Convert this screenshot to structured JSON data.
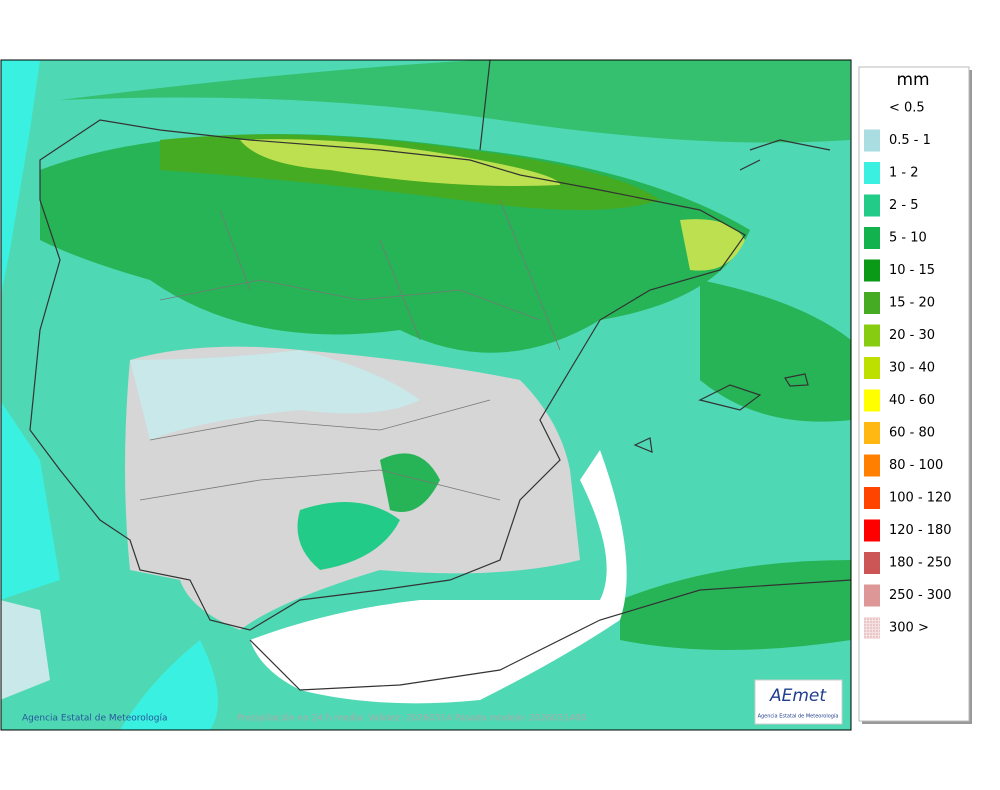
{
  "map": {
    "credit": "Agencia Estatal de Meteorología",
    "caption": "Precipitación en 24 h media. Validez: 20260314 Pasada modelo: 2026031400",
    "logo": {
      "text": "AEmet",
      "subtitle": "Agencia Estatal de Meteorología"
    }
  },
  "legend": {
    "unit": "mm",
    "items": [
      {
        "label": "< 0.5",
        "color": "#ffffff"
      },
      {
        "label": "0.5 - 1",
        "color": "#a9dde2"
      },
      {
        "label": "1 - 2",
        "color": "#3af0e0"
      },
      {
        "label": "2 - 5",
        "color": "#22cc88"
      },
      {
        "label": "5 - 10",
        "color": "#12b24e"
      },
      {
        "label": "10 - 15",
        "color": "#0a9a18"
      },
      {
        "label": "15 - 20",
        "color": "#45ab22"
      },
      {
        "label": "20 - 30",
        "color": "#88cc11"
      },
      {
        "label": "30 - 40",
        "color": "#bde000"
      },
      {
        "label": "40 - 60",
        "color": "#ffff00"
      },
      {
        "label": "60 - 80",
        "color": "#ffb812"
      },
      {
        "label": "80 - 100",
        "color": "#ff8000"
      },
      {
        "label": "100 - 120",
        "color": "#ff4400"
      },
      {
        "label": "120 - 180",
        "color": "#ff0000"
      },
      {
        "label": "180 - 250",
        "color": "#cc5555"
      },
      {
        "label": "250 - 300",
        "color": "#dd9797"
      },
      {
        "label": "300 >",
        "color": "#f2d6d6"
      }
    ]
  }
}
